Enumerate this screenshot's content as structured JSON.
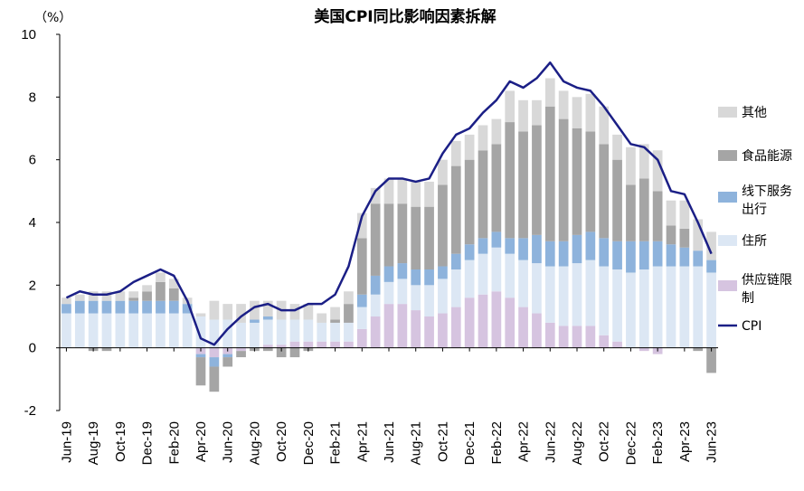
{
  "chart_data": {
    "type": "bar",
    "title": "美国CPI同比影响因素拆解",
    "unit": "（%）",
    "ylim": [
      -2,
      10
    ],
    "yticks": [
      "-2",
      "0",
      "2",
      "4",
      "6",
      "8",
      "10"
    ],
    "ytick_values": [
      -2,
      0,
      2,
      4,
      6,
      8,
      10
    ],
    "grid": false,
    "legend_position": "right",
    "stacked": true,
    "categories": [
      "Jun-19",
      "Jul-19",
      "Aug-19",
      "Sep-19",
      "Oct-19",
      "Nov-19",
      "Dec-19",
      "Jan-20",
      "Feb-20",
      "Mar-20",
      "Apr-20",
      "May-20",
      "Jun-20",
      "Jul-20",
      "Aug-20",
      "Sep-20",
      "Oct-20",
      "Nov-20",
      "Dec-20",
      "Jan-21",
      "Feb-21",
      "Mar-21",
      "Apr-21",
      "May-21",
      "Jun-21",
      "Jul-21",
      "Aug-21",
      "Sep-21",
      "Oct-21",
      "Nov-21",
      "Dec-21",
      "Jan-22",
      "Feb-22",
      "Mar-22",
      "Apr-22",
      "May-22",
      "Jun-22",
      "Jul-22",
      "Aug-22",
      "Sep-22",
      "Oct-22",
      "Nov-22",
      "Dec-22",
      "Jan-23",
      "Feb-23",
      "Mar-23",
      "Apr-23",
      "May-23",
      "Jun-23"
    ],
    "xtick_labels": [
      "Jun-19",
      "Aug-19",
      "Oct-19",
      "Dec-19",
      "Feb-20",
      "Apr-20",
      "Jun-20",
      "Aug-20",
      "Oct-20",
      "Dec-20",
      "Feb-21",
      "Apr-21",
      "Jun-21",
      "Aug-21",
      "Oct-21",
      "Dec-21",
      "Feb-22",
      "Apr-22",
      "Jun-22",
      "Aug-22",
      "Oct-22",
      "Dec-22",
      "Feb-23",
      "Apr-23",
      "Jun-23"
    ],
    "series": [
      {
        "name": "供应链限制",
        "color": "#d6c4e0",
        "values": [
          0,
          0,
          0,
          0,
          0,
          0,
          0,
          0,
          0,
          0,
          -0.2,
          -0.3,
          -0.2,
          -0.1,
          0,
          0.1,
          0.1,
          0.2,
          0.2,
          0.2,
          0.2,
          0.2,
          0.6,
          1.0,
          1.4,
          1.4,
          1.2,
          1.0,
          1.1,
          1.3,
          1.6,
          1.7,
          1.8,
          1.6,
          1.3,
          1.1,
          0.8,
          0.7,
          0.7,
          0.7,
          0.4,
          0.2,
          0,
          -0.1,
          -0.2,
          0,
          0,
          0,
          0
        ]
      },
      {
        "name": "住所",
        "color": "#dce7f4",
        "values": [
          1.1,
          1.1,
          1.1,
          1.1,
          1.1,
          1.1,
          1.1,
          1.1,
          1.1,
          1.1,
          1.0,
          0.9,
          0.9,
          0.8,
          0.8,
          0.8,
          0.8,
          0.7,
          0.7,
          0.6,
          0.6,
          0.6,
          0.7,
          0.7,
          0.7,
          0.8,
          0.8,
          1.0,
          1.1,
          1.2,
          1.2,
          1.3,
          1.4,
          1.4,
          1.5,
          1.6,
          1.8,
          1.9,
          2.0,
          2.1,
          2.2,
          2.3,
          2.4,
          2.5,
          2.6,
          2.6,
          2.6,
          2.6,
          2.4
        ]
      },
      {
        "name": "线下服务出行",
        "color": "#8eb3dc",
        "values": [
          0.3,
          0.4,
          0.4,
          0.4,
          0.4,
          0.4,
          0.4,
          0.4,
          0.4,
          0.3,
          -0.1,
          -0.3,
          -0.1,
          0,
          0.1,
          0.1,
          0,
          0,
          0,
          0,
          0,
          0,
          0.4,
          0.6,
          0.5,
          0.5,
          0.5,
          0.5,
          0.4,
          0.5,
          0.5,
          0.5,
          0.5,
          0.5,
          0.7,
          0.9,
          0.8,
          0.8,
          0.9,
          0.9,
          0.9,
          0.9,
          1.0,
          0.9,
          0.8,
          0.7,
          0.6,
          0.5,
          0.4
        ]
      },
      {
        "name": "食品能源",
        "color": "#a5a5a5",
        "values": [
          0,
          0,
          -0.1,
          -0.1,
          0,
          0.1,
          0.3,
          0.6,
          0.4,
          0,
          -0.9,
          -0.8,
          -0.3,
          -0.2,
          -0.1,
          -0.1,
          -0.3,
          -0.3,
          -0.1,
          0,
          0.1,
          0.6,
          1.8,
          2.3,
          2.0,
          1.9,
          2.0,
          2.0,
          2.6,
          2.8,
          2.7,
          2.8,
          2.8,
          3.7,
          3.4,
          3.5,
          4.3,
          3.9,
          3.4,
          3.2,
          3.0,
          2.6,
          1.8,
          2.0,
          1.6,
          0.6,
          0.6,
          -0.1,
          -0.8
        ]
      },
      {
        "name": "其他",
        "color": "#d8d8d8",
        "values": [
          0.2,
          0.2,
          0.3,
          0.3,
          0.3,
          0.2,
          0.2,
          0.3,
          0.3,
          0.2,
          0.1,
          0.6,
          0.5,
          0.6,
          0.6,
          0.5,
          0.6,
          0.5,
          0.5,
          0.3,
          0.4,
          0.4,
          0.8,
          0.5,
          0.8,
          0.8,
          0.8,
          0.8,
          0.8,
          0.8,
          0.8,
          0.8,
          0.8,
          1.0,
          1.0,
          0.8,
          0.9,
          0.9,
          1.0,
          1.2,
          1.2,
          0.8,
          1.2,
          1.1,
          1.3,
          0.8,
          0.9,
          1.0,
          0.9
        ]
      }
    ],
    "line": {
      "name": "CPI",
      "color": "#1b1f86",
      "values": [
        1.6,
        1.8,
        1.7,
        1.7,
        1.8,
        2.1,
        2.3,
        2.5,
        2.3,
        1.5,
        0.3,
        0.1,
        0.6,
        1.0,
        1.3,
        1.4,
        1.2,
        1.2,
        1.4,
        1.4,
        1.7,
        2.6,
        4.2,
        5.0,
        5.4,
        5.4,
        5.3,
        5.4,
        6.2,
        6.8,
        7.0,
        7.5,
        7.9,
        8.5,
        8.3,
        8.6,
        9.1,
        8.5,
        8.3,
        8.2,
        7.7,
        7.1,
        6.5,
        6.4,
        6.0,
        5.0,
        4.9,
        4.0,
        3.0
      ]
    },
    "legend": [
      {
        "key": "other",
        "label": "其他"
      },
      {
        "key": "food",
        "label": "食品能源"
      },
      {
        "key": "service",
        "label": "线下服务出行"
      },
      {
        "key": "shelter",
        "label": "住所"
      },
      {
        "key": "supply",
        "label": "供应链限制"
      },
      {
        "key": "cpi",
        "label": "CPI"
      }
    ]
  }
}
